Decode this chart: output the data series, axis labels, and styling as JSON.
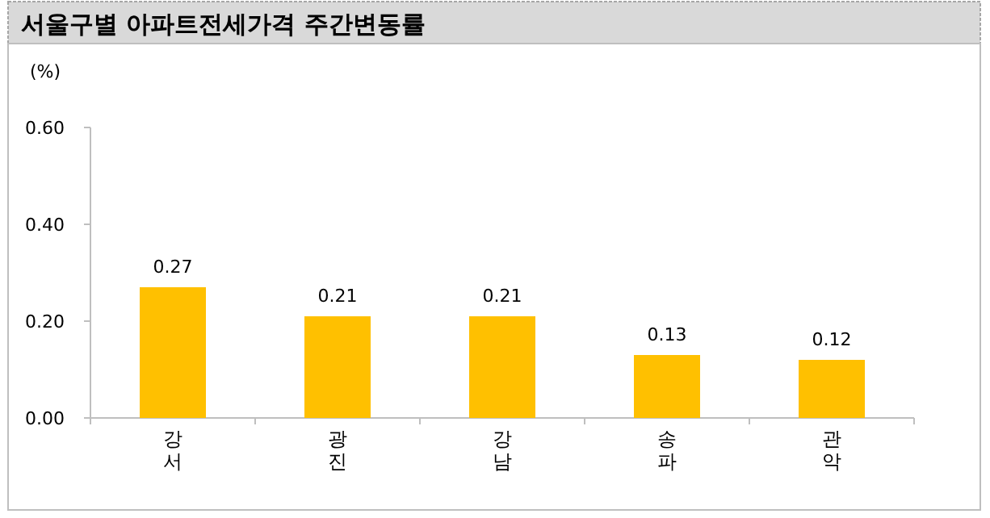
{
  "chart_data": {
    "type": "bar",
    "title": "서울구별 아파트전세가격 주간변동률",
    "ylabel": "(%)",
    "categories": [
      "강서",
      "광진",
      "강남",
      "송파",
      "관악"
    ],
    "values": [
      0.27,
      0.21,
      0.21,
      0.13,
      0.12
    ],
    "color": "#ffc000",
    "ylim": [
      0,
      0.6
    ],
    "yticks": [
      {
        "value": 0,
        "label": "0.00"
      },
      {
        "value": 0.2,
        "label": "0.20"
      },
      {
        "value": 0.4,
        "label": "0.40"
      },
      {
        "value": 0.6,
        "label": "0.60"
      }
    ],
    "data_labels": true,
    "grid": false
  }
}
